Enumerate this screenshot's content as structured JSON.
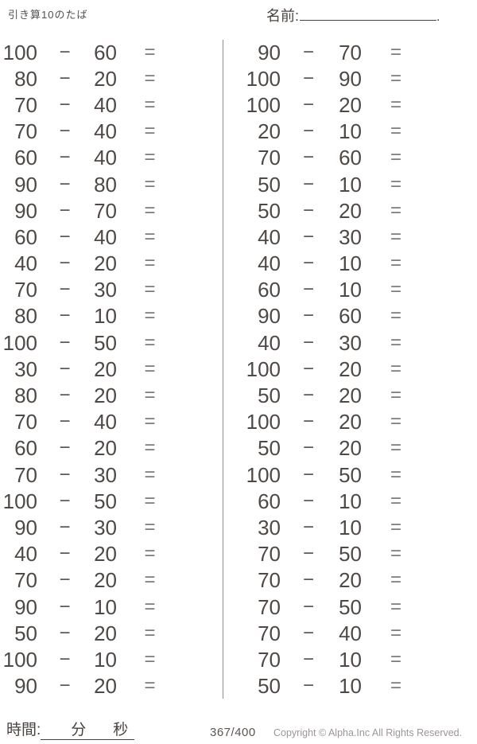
{
  "header": {
    "title": "引き算10のたば",
    "name_label": "名前:",
    "name_period": "."
  },
  "problems": {
    "operator_symbol": "−",
    "equals_symbol": "=",
    "left_column": [
      {
        "minuend": "100",
        "subtrahend": "60"
      },
      {
        "minuend": "80",
        "subtrahend": "20"
      },
      {
        "minuend": "70",
        "subtrahend": "40"
      },
      {
        "minuend": "70",
        "subtrahend": "40"
      },
      {
        "minuend": "60",
        "subtrahend": "40"
      },
      {
        "minuend": "90",
        "subtrahend": "80"
      },
      {
        "minuend": "90",
        "subtrahend": "70"
      },
      {
        "minuend": "60",
        "subtrahend": "40"
      },
      {
        "minuend": "40",
        "subtrahend": "20"
      },
      {
        "minuend": "70",
        "subtrahend": "30"
      },
      {
        "minuend": "80",
        "subtrahend": "10"
      },
      {
        "minuend": "100",
        "subtrahend": "50"
      },
      {
        "minuend": "30",
        "subtrahend": "20"
      },
      {
        "minuend": "80",
        "subtrahend": "20"
      },
      {
        "minuend": "70",
        "subtrahend": "40"
      },
      {
        "minuend": "60",
        "subtrahend": "20"
      },
      {
        "minuend": "70",
        "subtrahend": "30"
      },
      {
        "minuend": "100",
        "subtrahend": "50"
      },
      {
        "minuend": "90",
        "subtrahend": "30"
      },
      {
        "minuend": "40",
        "subtrahend": "20"
      },
      {
        "minuend": "70",
        "subtrahend": "20"
      },
      {
        "minuend": "90",
        "subtrahend": "10"
      },
      {
        "minuend": "50",
        "subtrahend": "20"
      },
      {
        "minuend": "100",
        "subtrahend": "10"
      },
      {
        "minuend": "90",
        "subtrahend": "20"
      }
    ],
    "right_column": [
      {
        "minuend": "90",
        "subtrahend": "70"
      },
      {
        "minuend": "100",
        "subtrahend": "90"
      },
      {
        "minuend": "100",
        "subtrahend": "20"
      },
      {
        "minuend": "20",
        "subtrahend": "10"
      },
      {
        "minuend": "70",
        "subtrahend": "60"
      },
      {
        "minuend": "50",
        "subtrahend": "10"
      },
      {
        "minuend": "50",
        "subtrahend": "20"
      },
      {
        "minuend": "40",
        "subtrahend": "30"
      },
      {
        "minuend": "40",
        "subtrahend": "10"
      },
      {
        "minuend": "60",
        "subtrahend": "10"
      },
      {
        "minuend": "90",
        "subtrahend": "60"
      },
      {
        "minuend": "40",
        "subtrahend": "30"
      },
      {
        "minuend": "100",
        "subtrahend": "20"
      },
      {
        "minuend": "50",
        "subtrahend": "20"
      },
      {
        "minuend": "100",
        "subtrahend": "20"
      },
      {
        "minuend": "50",
        "subtrahend": "20"
      },
      {
        "minuend": "100",
        "subtrahend": "50"
      },
      {
        "minuend": "60",
        "subtrahend": "10"
      },
      {
        "minuend": "30",
        "subtrahend": "10"
      },
      {
        "minuend": "70",
        "subtrahend": "50"
      },
      {
        "minuend": "70",
        "subtrahend": "20"
      },
      {
        "minuend": "70",
        "subtrahend": "50"
      },
      {
        "minuend": "70",
        "subtrahend": "40"
      },
      {
        "minuend": "70",
        "subtrahend": "10"
      },
      {
        "minuend": "50",
        "subtrahend": "10"
      }
    ]
  },
  "footer": {
    "time_label": "時間:",
    "minutes_label": "分",
    "seconds_label": "秒",
    "page_number": "367/400",
    "copyright": "Copyright ©  Alpha.Inc All Rights Reserved."
  },
  "colors": {
    "text": "#4f4946",
    "operator": "#5d5653",
    "equals": "#807a76",
    "divider": "#8e8c8a",
    "copyright": "#9c9794",
    "background": "#ffffff"
  }
}
